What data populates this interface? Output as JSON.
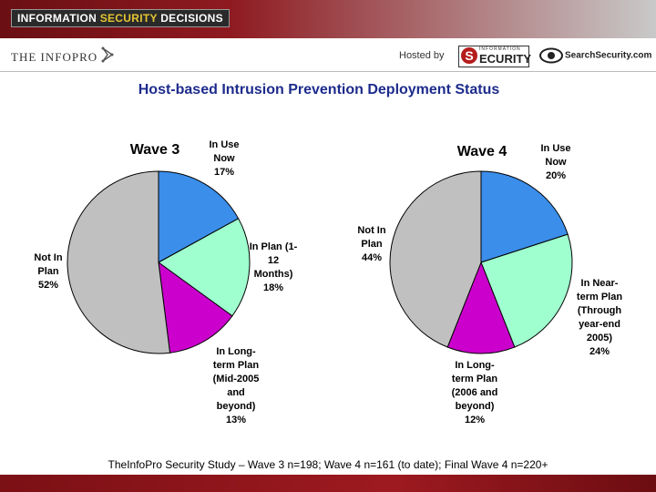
{
  "header": {
    "banner_main": "INFORMATION ",
    "banner_accent": "SECURITY",
    "banner_tail": " DECISIONS",
    "infopro_logo": "THE INFOPRO",
    "hosted_by": "Hosted by",
    "security_logo_top": "INFORMATION",
    "security_logo_letter": "S",
    "security_logo_main": "ECURITY",
    "searchsecurity_logo": "SearchSecurity.com"
  },
  "title": "Host-based Intrusion Prevention Deployment Status",
  "footer_note": "TheInfoPro Security Study – Wave 3 n=198; Wave 4 n=161 (to date); Final Wave 4 n=220+",
  "colors": {
    "title": "#1d2b8c",
    "in_use": "#3b8eea",
    "in_plan": "#9fffcf",
    "long_term": "#cc00cc",
    "not_in_plan": "#c0c0c0",
    "banner": "#8e1a20"
  },
  "chart_data": [
    {
      "type": "pie",
      "title": "Wave 3",
      "slices": [
        {
          "key": "in_use",
          "value": 17,
          "label_lines": [
            "In Use",
            "Now",
            "17%"
          ]
        },
        {
          "key": "in_plan",
          "value": 18,
          "label_lines": [
            "In Plan (1-",
            "12",
            "Months)",
            "18%"
          ]
        },
        {
          "key": "long_term",
          "value": 13,
          "label_lines": [
            "In Long-",
            "term Plan",
            "(Mid-2005",
            "and",
            "beyond)",
            "13%"
          ]
        },
        {
          "key": "not_in_plan",
          "value": 52,
          "label_lines": [
            "Not In",
            "Plan",
            "52%"
          ]
        }
      ]
    },
    {
      "type": "pie",
      "title": "Wave 4",
      "slices": [
        {
          "key": "in_use",
          "value": 20,
          "label_lines": [
            "In Use",
            "Now",
            "20%"
          ]
        },
        {
          "key": "in_plan",
          "value": 24,
          "label_lines": [
            "In Near-",
            "term Plan",
            "(Through",
            "year-end",
            "2005)",
            "24%"
          ]
        },
        {
          "key": "long_term",
          "value": 12,
          "label_lines": [
            "In Long-",
            "term Plan",
            "(2006 and",
            "beyond)",
            "12%"
          ]
        },
        {
          "key": "not_in_plan",
          "value": 44,
          "label_lines": [
            "Not In",
            "Plan",
            "44%"
          ]
        }
      ]
    }
  ]
}
